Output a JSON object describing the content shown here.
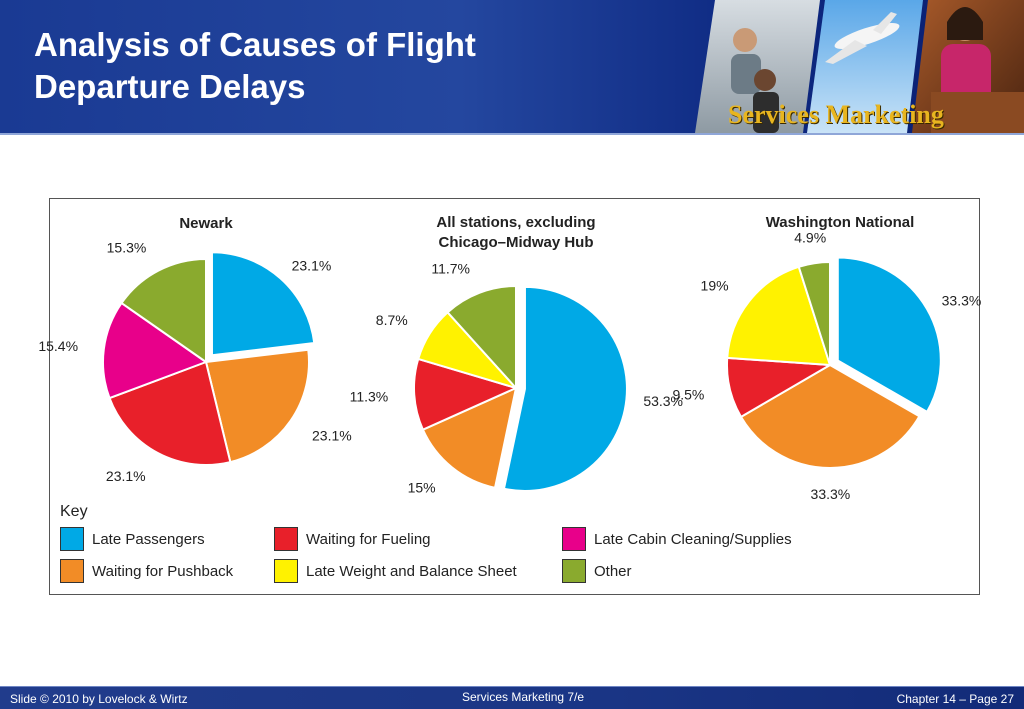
{
  "slide": {
    "title_line1": "Analysis of Causes of Flight",
    "title_line2": "Departure Delays",
    "brand_text": "Services Marketing"
  },
  "chart_data": {
    "type": "pie",
    "categories": [
      "Late Passengers",
      "Waiting for Pushback",
      "Waiting for Fueling",
      "Late Weight and Balance Sheet",
      "Late Cabin Cleaning/Supplies",
      "Other"
    ],
    "colors": {
      "Late Passengers": "#00a9e6",
      "Waiting for Pushback": "#f28c26",
      "Waiting for Fueling": "#e8202a",
      "Late Weight and Balance Sheet": "#fff200",
      "Late Cabin Cleaning/Supplies": "#e8008a",
      "Other": "#8aaa2e"
    },
    "pies": [
      {
        "title_lines": [
          "Newark"
        ],
        "exploded": "Late Passengers",
        "slices": [
          {
            "category": "Late Passengers",
            "value": 23.1,
            "label": "23.1%"
          },
          {
            "category": "Waiting for Pushback",
            "value": 23.1,
            "label": "23.1%"
          },
          {
            "category": "Waiting for Fueling",
            "value": 23.1,
            "label": "23.1%"
          },
          {
            "category": "Late Cabin Cleaning/Supplies",
            "value": 15.4,
            "label": "15.4%"
          },
          {
            "category": "Other",
            "value": 15.3,
            "label": "15.3%"
          }
        ]
      },
      {
        "title_lines": [
          "All stations, excluding",
          "Chicago–Midway Hub"
        ],
        "exploded": "Late Passengers",
        "slices": [
          {
            "category": "Late Passengers",
            "value": 53.3,
            "label": "53.3%"
          },
          {
            "category": "Waiting for Pushback",
            "value": 15,
            "label": "15%"
          },
          {
            "category": "Waiting for Fueling",
            "value": 11.3,
            "label": "11.3%"
          },
          {
            "category": "Late Weight and Balance Sheet",
            "value": 8.7,
            "label": "8.7%"
          },
          {
            "category": "Other",
            "value": 11.7,
            "label": "11.7%"
          }
        ]
      },
      {
        "title_lines": [
          "Washington National"
        ],
        "exploded": "Late Passengers",
        "slices": [
          {
            "category": "Late Passengers",
            "value": 33.3,
            "label": "33.3%"
          },
          {
            "category": "Waiting for Pushback",
            "value": 33.3,
            "label": "33.3%"
          },
          {
            "category": "Waiting for Fueling",
            "value": 9.5,
            "label": "9.5%"
          },
          {
            "category": "Late Weight and Balance Sheet",
            "value": 19,
            "label": "19%"
          },
          {
            "category": "Other",
            "value": 4.9,
            "label": "4.9%"
          }
        ]
      }
    ],
    "legend": {
      "title": "Key",
      "items": [
        "Late Passengers",
        "Waiting for Fueling",
        "Late Cabin Cleaning/Supplies",
        "Waiting for Pushback",
        "Late Weight and Balance Sheet",
        "Other"
      ]
    }
  },
  "footer": {
    "left": "Slide © 2010 by Lovelock & Wirtz",
    "center": "Services Marketing 7/e",
    "right": "Chapter 14 – Page 27"
  }
}
